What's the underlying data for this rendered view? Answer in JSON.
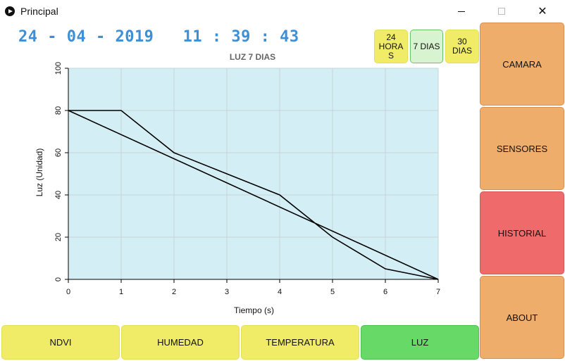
{
  "window": {
    "title": "Principal",
    "min_icon": "minimize-icon",
    "max_icon": "maximize-icon",
    "close_icon": "close-icon",
    "close_glyph": "✕"
  },
  "datetime": "24 - 04 - 2019   11 : 39 : 43",
  "range_buttons": [
    "24\nHORA\nS",
    "7 DIAS",
    "30\nDIAS"
  ],
  "range_selected": "7 DIAS",
  "side_buttons": [
    {
      "label": "CAMARA",
      "color": "#efad6b"
    },
    {
      "label": "SENSORES",
      "color": "#efad6b"
    },
    {
      "label": "HISTORIAL",
      "color": "#ef6b6b"
    },
    {
      "label": "ABOUT",
      "color": "#efad6b"
    }
  ],
  "bottom_buttons": [
    {
      "label": "NDVI",
      "color": "#f0ec68"
    },
    {
      "label": "HUMEDAD",
      "color": "#f0ec68"
    },
    {
      "label": "TEMPERATURA",
      "color": "#f0ec68"
    },
    {
      "label": "LUZ",
      "color": "#66d966"
    }
  ],
  "chart_data": {
    "type": "line",
    "title": "LUZ 7 DIAS",
    "xlabel": "Tiempo (s)",
    "ylabel": "Luz (Unidad)",
    "xlim": [
      0,
      7
    ],
    "ylim": [
      0,
      100
    ],
    "xticks": [
      0,
      1,
      2,
      3,
      4,
      5,
      6,
      7
    ],
    "yticks": [
      0,
      20,
      40,
      60,
      80,
      100
    ],
    "grid": true,
    "plot_background": "#d3eff5",
    "series": [
      {
        "x": [
          0,
          1,
          2,
          3,
          4,
          5,
          6,
          7
        ],
        "y": [
          80,
          80,
          60,
          50,
          40,
          20,
          5,
          0
        ],
        "color": "#000000"
      },
      {
        "x": [
          0,
          7
        ],
        "y": [
          80,
          0
        ],
        "color": "#000000"
      }
    ]
  }
}
